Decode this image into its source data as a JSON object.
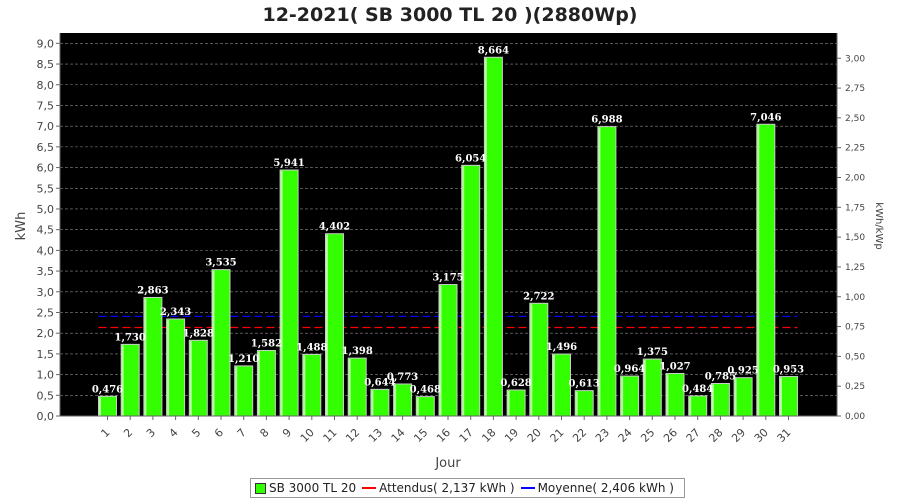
{
  "chart_data": {
    "type": "bar",
    "title": "12-2021( SB 3000 TL 20 )(2880Wp)",
    "xlabel": "Jour",
    "ylabel": "kWh",
    "y2label": "kWh/kWp",
    "ylim": [
      0,
      9.25
    ],
    "y2lim": [
      0,
      3.2118
    ],
    "yticks": [
      "0,0",
      "0,5",
      "1,0",
      "1,5",
      "2,0",
      "2,5",
      "3,0",
      "3,5",
      "4,0",
      "4,5",
      "5,0",
      "5,5",
      "6,0",
      "6,5",
      "7,0",
      "7,5",
      "8,0",
      "8,5",
      "9,0"
    ],
    "y2ticks": [
      "0,00",
      "0,25",
      "0,50",
      "0,75",
      "1,00",
      "1,25",
      "1,50",
      "1,75",
      "2,00",
      "2,25",
      "2,50",
      "2,75",
      "3,00"
    ],
    "categories": [
      "1",
      "2",
      "3",
      "4",
      "5",
      "6",
      "7",
      "8",
      "9",
      "10",
      "11",
      "12",
      "13",
      "14",
      "15",
      "16",
      "17",
      "18",
      "19",
      "20",
      "21",
      "22",
      "23",
      "24",
      "25",
      "26",
      "27",
      "28",
      "29",
      "30",
      "31"
    ],
    "series": [
      {
        "name": "SB 3000 TL 20",
        "color": "#33ff00",
        "values": [
          0.476,
          1.73,
          2.863,
          2.343,
          1.828,
          3.535,
          1.21,
          1.582,
          5.941,
          1.488,
          4.402,
          1.398,
          0.644,
          0.773,
          0.468,
          3.175,
          6.054,
          8.664,
          0.628,
          2.722,
          1.496,
          0.613,
          6.988,
          0.964,
          1.375,
          1.027,
          0.484,
          0.785,
          0.925,
          7.046,
          0.953
        ],
        "labels": [
          "0,476",
          "1,730",
          "2,863",
          "2,343",
          "1,828",
          "3,535",
          "1,210",
          "1,582",
          "5,941",
          "1,488",
          "4,402",
          "1,398",
          "0,644",
          "0,773",
          "0,468",
          "3,175",
          "6,054",
          "8,664",
          "0,628",
          "2,722",
          "1,496",
          "0,613",
          "6,988",
          "0,964",
          "1,375",
          "1,027",
          "0,484",
          "0,785",
          "0,925",
          "7,046",
          "0,953"
        ]
      }
    ],
    "reference_lines": [
      {
        "name": "Attendus",
        "value": 2.137,
        "color": "#ff0000",
        "style": "dashed"
      },
      {
        "name": "Moyenne",
        "value": 2.406,
        "color": "#0000ff",
        "style": "dashed"
      }
    ],
    "legend": {
      "placement": "bottom",
      "items": [
        "SB 3000 TL 20",
        "Attendus( 2,137 kWh )",
        "Moyenne( 2,406 kWh )"
      ]
    },
    "grid": true,
    "plot_background": "#000000"
  }
}
